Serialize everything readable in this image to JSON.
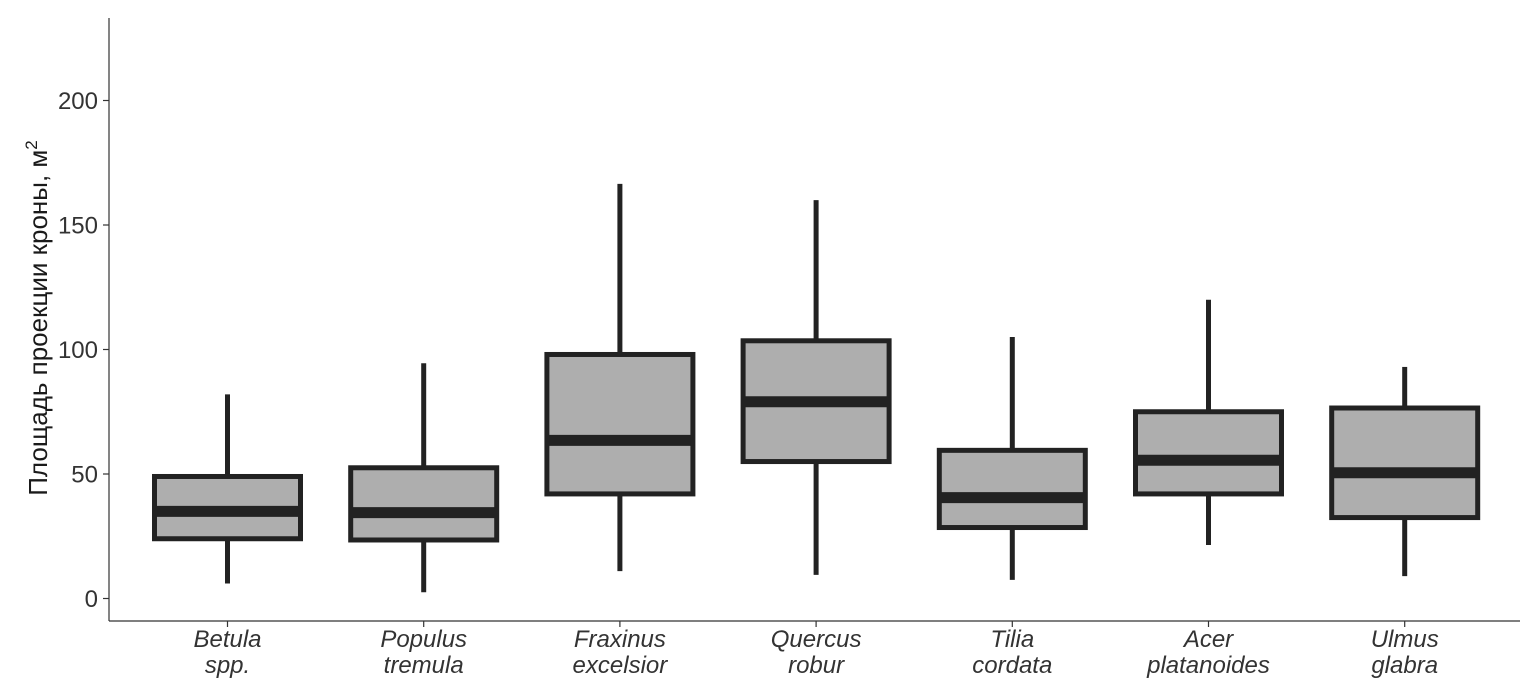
{
  "chart_data": {
    "type": "box",
    "categories": [
      [
        "Betula",
        "spp."
      ],
      [
        "Populus",
        "tremula"
      ],
      [
        "Fraxinus",
        "excelsior"
      ],
      [
        "Quercus",
        "robur"
      ],
      [
        "Tilia",
        "cordata"
      ],
      [
        "Acer",
        "platanoides"
      ],
      [
        "Ulmus",
        "glabra"
      ]
    ],
    "boxes": [
      {
        "min": 6,
        "q1": 24,
        "median": 35,
        "q3": 49,
        "max": 82
      },
      {
        "min": 2.5,
        "q1": 23.5,
        "median": 34.5,
        "q3": 52.5,
        "max": 94.5
      },
      {
        "min": 11,
        "q1": 42,
        "median": 63.5,
        "q3": 98,
        "max": 166.5
      },
      {
        "min": 9.5,
        "q1": 55,
        "median": 79,
        "q3": 103.5,
        "max": 160
      },
      {
        "min": 7.5,
        "q1": 28.5,
        "median": 40.5,
        "q3": 59.5,
        "max": 105
      },
      {
        "min": 21.5,
        "q1": 42,
        "median": 55.5,
        "q3": 75,
        "max": 120
      },
      {
        "min": 9,
        "q1": 32.5,
        "median": 50.5,
        "q3": 76.5,
        "max": 93
      }
    ],
    "ylabel": "Площадь проекции кроны, м",
    "ylabel_superscript": "2",
    "yticks": [
      0,
      50,
      100,
      150,
      200
    ],
    "ylim": [
      -9,
      232
    ],
    "grid": false,
    "colors": {
      "box_fill": "#aeaeae",
      "outline": "#222222",
      "axis": "#333333",
      "text": "#333333"
    }
  }
}
